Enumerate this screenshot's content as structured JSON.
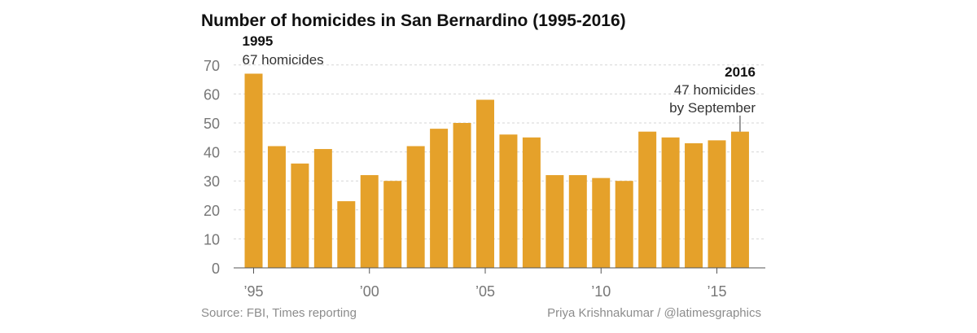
{
  "chart_data": {
    "type": "bar",
    "title": "Number of homicides in San Bernardino (1995-2016)",
    "categories": [
      "1995",
      "1996",
      "1997",
      "1998",
      "1999",
      "2000",
      "2001",
      "2002",
      "2003",
      "2004",
      "2005",
      "2006",
      "2007",
      "2008",
      "2009",
      "2010",
      "2011",
      "2012",
      "2013",
      "2014",
      "2015",
      "2016"
    ],
    "values": [
      67,
      42,
      36,
      41,
      23,
      32,
      30,
      42,
      48,
      50,
      58,
      46,
      45,
      32,
      32,
      31,
      30,
      47,
      45,
      43,
      44,
      47
    ],
    "x_ticks": [
      {
        "index": 0,
        "label": "’95"
      },
      {
        "index": 5,
        "label": "’00"
      },
      {
        "index": 10,
        "label": "’05"
      },
      {
        "index": 15,
        "label": "’10"
      },
      {
        "index": 20,
        "label": "’15"
      }
    ],
    "y_ticks": [
      0,
      10,
      20,
      30,
      40,
      50,
      60,
      70
    ],
    "ylim": [
      0,
      75
    ],
    "grid": true,
    "bar_color": "#e5a12a",
    "annotations": [
      {
        "index": 0,
        "bold": "1995",
        "lines": [
          "67 homicides"
        ],
        "align": "left"
      },
      {
        "index": 21,
        "bold": "2016",
        "lines": [
          "47 homicides",
          "by September"
        ],
        "align": "right"
      }
    ],
    "source": "Source: FBI, Times reporting",
    "credit": "Priya Krishnakumar / @latimesgraphics"
  }
}
